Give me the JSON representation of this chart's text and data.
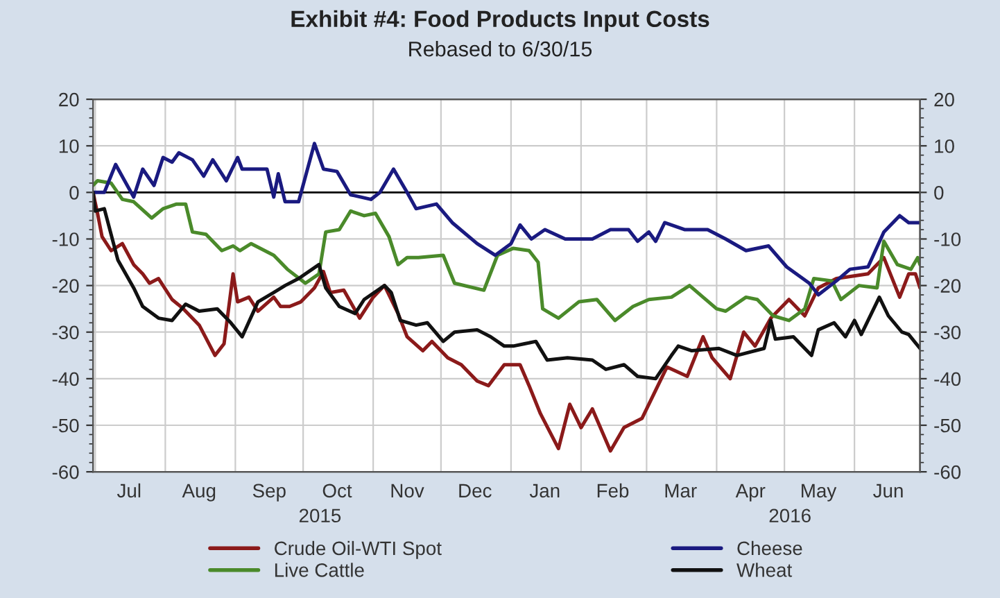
{
  "chart_data": {
    "type": "line",
    "title": "Exhibit #4: Food Products Input Costs",
    "subtitle": "Rebased to 6/30/15",
    "annotations": [
      "2015",
      "2016"
    ],
    "xlim": [
      "2015-06-30",
      "2016-06-30"
    ],
    "xticks": [
      {
        "value": "2015-07-01",
        "label": null
      },
      {
        "value": "2015-07-16",
        "label": "Jul"
      },
      {
        "value": "2015-08-01",
        "label": null
      },
      {
        "value": "2015-08-16",
        "label": "Aug"
      },
      {
        "value": "2015-09-01",
        "label": null
      },
      {
        "value": "2015-09-16",
        "label": "Sep"
      },
      {
        "value": "2015-10-01",
        "label": null
      },
      {
        "value": "2015-10-16",
        "label": "Oct"
      },
      {
        "value": "2015-11-01",
        "label": null
      },
      {
        "value": "2015-11-16",
        "label": "Nov"
      },
      {
        "value": "2015-12-01",
        "label": null
      },
      {
        "value": "2015-12-16",
        "label": "Dec"
      },
      {
        "value": "2016-01-01",
        "label": null
      },
      {
        "value": "2016-01-16",
        "label": "Jan"
      },
      {
        "value": "2016-02-01",
        "label": null
      },
      {
        "value": "2016-02-15",
        "label": "Feb"
      },
      {
        "value": "2016-03-01",
        "label": null
      },
      {
        "value": "2016-03-16",
        "label": "Mar"
      },
      {
        "value": "2016-04-01",
        "label": null
      },
      {
        "value": "2016-04-16",
        "label": "Apr"
      },
      {
        "value": "2016-05-01",
        "label": null
      },
      {
        "value": "2016-05-16",
        "label": "May"
      },
      {
        "value": "2016-06-01",
        "label": null
      },
      {
        "value": "2016-06-16",
        "label": "Jun"
      }
    ],
    "ylim": [
      -60,
      20
    ],
    "yticks": [
      -60,
      -50,
      -40,
      -30,
      -20,
      -10,
      0,
      10,
      20
    ],
    "y2lim": [
      -60,
      20
    ],
    "y2ticks": [
      -60,
      -50,
      -40,
      -30,
      -20,
      -10,
      0,
      10,
      20
    ],
    "grid": true,
    "legend": "bottom",
    "marker": "none",
    "line_style": "solid",
    "ref_lines": [
      {
        "axis": "y",
        "value": 0,
        "color": "#000000"
      }
    ],
    "series": [
      {
        "name": "Crude Oil-WTI Spot",
        "color": "#8b1a1a",
        "x": [
          "2015-06-30",
          "2015-07-02",
          "2015-07-04",
          "2015-07-08",
          "2015-07-13",
          "2015-07-18",
          "2015-07-22",
          "2015-07-25",
          "2015-07-29",
          "2015-08-04",
          "2015-08-09",
          "2015-08-16",
          "2015-08-23",
          "2015-08-27",
          "2015-08-31",
          "2015-09-02",
          "2015-09-07",
          "2015-09-11",
          "2015-09-18",
          "2015-09-21",
          "2015-09-25",
          "2015-09-30",
          "2015-10-06",
          "2015-10-10",
          "2015-10-13",
          "2015-10-19",
          "2015-10-26",
          "2015-11-01",
          "2015-11-06",
          "2015-11-12",
          "2015-11-16",
          "2015-11-23",
          "2015-11-27",
          "2015-12-04",
          "2015-12-10",
          "2015-12-17",
          "2015-12-22",
          "2015-12-29",
          "2016-01-05",
          "2016-01-09",
          "2016-01-14",
          "2016-01-22",
          "2016-01-27",
          "2016-02-01",
          "2016-02-06",
          "2016-02-14",
          "2016-02-20",
          "2016-02-28",
          "2016-03-05",
          "2016-03-10",
          "2016-03-19",
          "2016-03-26",
          "2016-03-30",
          "2016-04-07",
          "2016-04-13",
          "2016-04-18",
          "2016-04-25",
          "2016-05-03",
          "2016-05-10",
          "2016-05-16",
          "2016-05-24",
          "2016-06-07",
          "2016-06-14",
          "2016-06-21",
          "2016-06-25",
          "2016-06-28",
          "2016-06-30"
        ],
        "values": [
          0,
          -4.5,
          -9.5,
          -12.5,
          -11,
          -15.5,
          -17.5,
          -19.5,
          -18.5,
          -23,
          -25,
          -28.5,
          -35,
          -32.5,
          -17.5,
          -23.5,
          -22.5,
          -25.5,
          -22.5,
          -24.5,
          -24.5,
          -23.5,
          -20.5,
          -17,
          -21.5,
          -21,
          -27,
          -22.5,
          -20,
          -26,
          -31,
          -34,
          -32,
          -35.5,
          -37,
          -40.5,
          -41.5,
          -37,
          -37,
          -41.5,
          -47.5,
          -55,
          -45.5,
          -50.5,
          -46.5,
          -55.5,
          -50.5,
          -48.5,
          -42.5,
          -37.5,
          -39.5,
          -31,
          -35.5,
          -40,
          -30,
          -33,
          -27,
          -23,
          -26.5,
          -20.5,
          -18.5,
          -17.5,
          -14,
          -22.5,
          -17.5,
          -17.5,
          -20.5
        ]
      },
      {
        "name": "Live Cattle",
        "color": "#4a8a2a",
        "x": [
          "2015-06-30",
          "2015-07-02",
          "2015-07-08",
          "2015-07-13",
          "2015-07-18",
          "2015-07-26",
          "2015-07-31",
          "2015-08-06",
          "2015-08-10",
          "2015-08-13",
          "2015-08-19",
          "2015-08-26",
          "2015-08-31",
          "2015-09-03",
          "2015-09-08",
          "2015-09-18",
          "2015-09-24",
          "2015-10-02",
          "2015-10-08",
          "2015-10-11",
          "2015-10-17",
          "2015-10-22",
          "2015-10-28",
          "2015-11-02",
          "2015-11-08",
          "2015-11-12",
          "2015-11-16",
          "2015-11-21",
          "2015-12-02",
          "2015-12-07",
          "2015-12-20",
          "2015-12-26",
          "2016-01-02",
          "2016-01-09",
          "2016-01-13",
          "2016-01-15",
          "2016-01-22",
          "2016-01-31",
          "2016-02-08",
          "2016-02-16",
          "2016-02-24",
          "2016-03-02",
          "2016-03-12",
          "2016-03-20",
          "2016-04-01",
          "2016-04-05",
          "2016-04-14",
          "2016-04-19",
          "2016-04-26",
          "2016-05-03",
          "2016-05-10",
          "2016-05-14",
          "2016-05-22",
          "2016-05-26",
          "2016-06-03",
          "2016-06-11",
          "2016-06-14",
          "2016-06-20",
          "2016-06-26",
          "2016-06-29",
          "2016-06-30"
        ],
        "values": [
          1.5,
          2.5,
          2,
          -1.5,
          -2,
          -5.5,
          -3.5,
          -2.5,
          -2.5,
          -8.5,
          -9,
          -12.5,
          -11.5,
          -12.5,
          -11,
          -13.5,
          -16.5,
          -19.5,
          -17.5,
          -8.5,
          -8,
          -4,
          -5,
          -4.5,
          -9.5,
          -15.5,
          -14,
          -14,
          -13.5,
          -19.5,
          -21,
          -13.5,
          -12,
          -12.5,
          -15,
          -25,
          -27,
          -23.5,
          -23,
          -27.5,
          -24.5,
          -23,
          -22.5,
          -20,
          -25,
          -25.5,
          -22.5,
          -23,
          -26.5,
          -27.5,
          -25,
          -18.5,
          -19,
          -23,
          -20,
          -20.5,
          -10.5,
          -15.5,
          -16.5,
          -14,
          -15.5
        ]
      },
      {
        "name": "Cheese",
        "color": "#1a1a80",
        "x": [
          "2015-06-30",
          "2015-07-05",
          "2015-07-10",
          "2015-07-18",
          "2015-07-22",
          "2015-07-27",
          "2015-07-31",
          "2015-08-04",
          "2015-08-07",
          "2015-08-13",
          "2015-08-18",
          "2015-08-22",
          "2015-08-28",
          "2015-09-02",
          "2015-09-04",
          "2015-09-15",
          "2015-09-18",
          "2015-09-20",
          "2015-09-23",
          "2015-09-29",
          "2015-10-06",
          "2015-10-10",
          "2015-10-16",
          "2015-10-22",
          "2015-10-31",
          "2015-11-04",
          "2015-11-10",
          "2015-11-16",
          "2015-11-20",
          "2015-11-29",
          "2015-12-06",
          "2015-12-17",
          "2015-12-25",
          "2016-01-01",
          "2016-01-05",
          "2016-01-10",
          "2016-01-16",
          "2016-01-25",
          "2016-02-06",
          "2016-02-14",
          "2016-02-22",
          "2016-02-26",
          "2016-03-02",
          "2016-03-05",
          "2016-03-09",
          "2016-03-18",
          "2016-03-28",
          "2016-04-05",
          "2016-04-14",
          "2016-04-24",
          "2016-05-02",
          "2016-05-12",
          "2016-05-16",
          "2016-05-24",
          "2016-05-30",
          "2016-06-07",
          "2016-06-14",
          "2016-06-21",
          "2016-06-25",
          "2016-06-30"
        ],
        "values": [
          0,
          0,
          6,
          -1,
          5,
          1.5,
          7.5,
          6.5,
          8.5,
          7,
          3.5,
          7,
          2.5,
          7.5,
          5,
          5,
          -1,
          4,
          -2,
          -2,
          10.5,
          5,
          4.5,
          -0.5,
          -1.5,
          0,
          5,
          0,
          -3.5,
          -2.5,
          -6.5,
          -11,
          -13.5,
          -11,
          -7,
          -10,
          -8,
          -10,
          -10,
          -8,
          -8,
          -10.5,
          -8.5,
          -10.5,
          -6.5,
          -8,
          -8,
          -10,
          -12.5,
          -11.5,
          -16,
          -19.5,
          -22,
          -19,
          -16.5,
          -16,
          -8.5,
          -5,
          -6.5,
          -6.5
        ]
      },
      {
        "name": "Wheat",
        "color": "#111111",
        "x": [
          "2015-06-30",
          "2015-07-01",
          "2015-07-05",
          "2015-07-11",
          "2015-07-18",
          "2015-07-22",
          "2015-07-29",
          "2015-08-04",
          "2015-08-10",
          "2015-08-16",
          "2015-08-24",
          "2015-08-30",
          "2015-09-04",
          "2015-09-11",
          "2015-09-18",
          "2015-09-23",
          "2015-09-29",
          "2015-10-08",
          "2015-10-11",
          "2015-10-17",
          "2015-10-24",
          "2015-10-28",
          "2015-11-06",
          "2015-11-09",
          "2015-11-13",
          "2015-11-20",
          "2015-11-25",
          "2015-12-02",
          "2015-12-07",
          "2015-12-17",
          "2015-12-23",
          "2015-12-29",
          "2016-01-02",
          "2016-01-07",
          "2016-01-12",
          "2016-01-17",
          "2016-01-26",
          "2016-02-06",
          "2016-02-12",
          "2016-02-20",
          "2016-02-26",
          "2016-03-05",
          "2016-03-12",
          "2016-03-15",
          "2016-03-21",
          "2016-04-02",
          "2016-04-10",
          "2016-04-22",
          "2016-04-25",
          "2016-04-27",
          "2016-05-05",
          "2016-05-13",
          "2016-05-16",
          "2016-05-23",
          "2016-05-28",
          "2016-06-01",
          "2016-06-04",
          "2016-06-12",
          "2016-06-16",
          "2016-06-22",
          "2016-06-25",
          "2016-06-30"
        ],
        "values": [
          0,
          -4,
          -3.5,
          -14.5,
          -20.5,
          -24.5,
          -27,
          -27.5,
          -24,
          -25.5,
          -25,
          -28,
          -31,
          -23.5,
          -21.5,
          -20,
          -18.5,
          -15.5,
          -20.5,
          -24.5,
          -26,
          -23,
          -20,
          -21.5,
          -27.5,
          -28.5,
          -28,
          -32,
          -30,
          -29.5,
          -31,
          -33,
          -33,
          -32.5,
          -32,
          -36,
          -35.5,
          -36,
          -38,
          -37,
          -39.5,
          -40,
          -35,
          -33,
          -34,
          -33.5,
          -35,
          -33.5,
          -27.5,
          -31.5,
          -31,
          -35,
          -29.5,
          -28,
          -31,
          -27.5,
          -30.5,
          -22.5,
          -26.5,
          -30,
          -30.5,
          -33.5
        ]
      }
    ]
  }
}
